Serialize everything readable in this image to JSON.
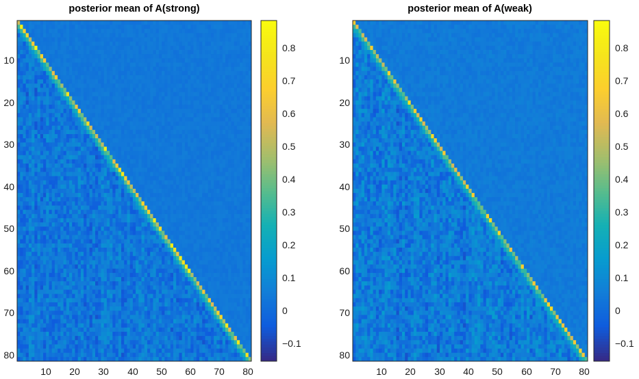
{
  "chart_data": [
    {
      "type": "heatmap",
      "title": "posterior mean of A(strong)",
      "rows": 81,
      "cols": 81,
      "x_ticks": [
        "10",
        "20",
        "30",
        "40",
        "50",
        "60",
        "70",
        "80"
      ],
      "y_ticks": [
        "10",
        "20",
        "30",
        "40",
        "50",
        "60",
        "70",
        "80"
      ],
      "colorbar_ticks": [
        "−0.1",
        "0",
        "0.1",
        "0.2",
        "0.3",
        "0.4",
        "0.5",
        "0.6",
        "0.7",
        "0.8"
      ],
      "clim": [
        -0.16,
        0.88
      ],
      "colormap": "parula",
      "pattern": {
        "background": 0.03,
        "diagonal_range": [
          0.35,
          0.85
        ],
        "first_subdiagonal": 0.3,
        "second_subdiagonal": 0.15,
        "lower_triangle_noise": 0.08,
        "upper_triangle_noise": 0.02
      }
    },
    {
      "type": "heatmap",
      "title": "posterior mean of A(weak)",
      "rows": 81,
      "cols": 81,
      "x_ticks": [
        "10",
        "20",
        "30",
        "40",
        "50",
        "60",
        "70",
        "80"
      ],
      "y_ticks": [
        "10",
        "20",
        "30",
        "40",
        "50",
        "60",
        "70",
        "80"
      ],
      "colorbar_ticks": [
        "−0.1",
        "0",
        "0.1",
        "0.2",
        "0.3",
        "0.4",
        "0.5",
        "0.6",
        "0.7",
        "0.8"
      ],
      "clim": [
        -0.16,
        0.88
      ],
      "colormap": "parula",
      "pattern": {
        "background": 0.04,
        "diagonal_range": [
          0.3,
          0.75
        ],
        "first_subdiagonal": 0.28,
        "second_subdiagonal": 0.15,
        "lower_triangle_noise": 0.09,
        "upper_triangle_noise": 0.025
      }
    }
  ]
}
